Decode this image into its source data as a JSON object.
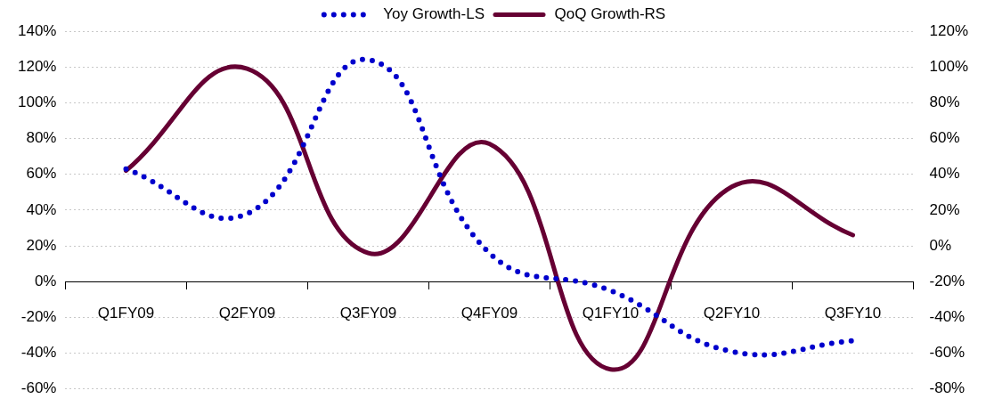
{
  "chart_data": {
    "type": "line",
    "categories": [
      "Q1FY09",
      "Q2FY09",
      "Q3FY09",
      "Q4FY09",
      "Q1FY10",
      "Q2FY10",
      "Q3FY10"
    ],
    "series": [
      {
        "name": "Yoy Growth-LS",
        "color": "#0000cc",
        "line_style": "dotted",
        "values": [
          63,
          38,
          124,
          16,
          -5,
          -39,
          -33
        ]
      },
      {
        "name": "QoQ Growth-RS",
        "color": "#660033",
        "line_style": "solid",
        "axis": "y2",
        "values": [
          42,
          99,
          -4,
          57,
          -69,
          33,
          6
        ]
      }
    ],
    "ylim": [
      -60,
      140
    ],
    "yticks": [
      {
        "value": -60,
        "label": "-60%"
      },
      {
        "value": -40,
        "label": "-40%"
      },
      {
        "value": -20,
        "label": "-20%"
      },
      {
        "value": 0,
        "label": "0%"
      },
      {
        "value": 20,
        "label": "20%"
      },
      {
        "value": 40,
        "label": "40%"
      },
      {
        "value": 60,
        "label": "60%"
      },
      {
        "value": 80,
        "label": "80%"
      },
      {
        "value": 100,
        "label": "100%"
      },
      {
        "value": 120,
        "label": "120%"
      },
      {
        "value": 140,
        "label": "140%"
      }
    ],
    "y2lim": [
      -80,
      120
    ],
    "y2ticks": [
      {
        "value": -80,
        "label": "-80%"
      },
      {
        "value": -60,
        "label": "-60%"
      },
      {
        "value": -40,
        "label": "-40%"
      },
      {
        "value": -20,
        "label": "-20%"
      },
      {
        "value": 0,
        "label": "0%"
      },
      {
        "value": 20,
        "label": "20%"
      },
      {
        "value": 40,
        "label": "40%"
      },
      {
        "value": 60,
        "label": "60%"
      },
      {
        "value": 80,
        "label": "80%"
      },
      {
        "value": 100,
        "label": "100%"
      },
      {
        "value": 120,
        "label": "120%"
      }
    ],
    "grid": "y",
    "legend": "top",
    "marker": "none"
  }
}
